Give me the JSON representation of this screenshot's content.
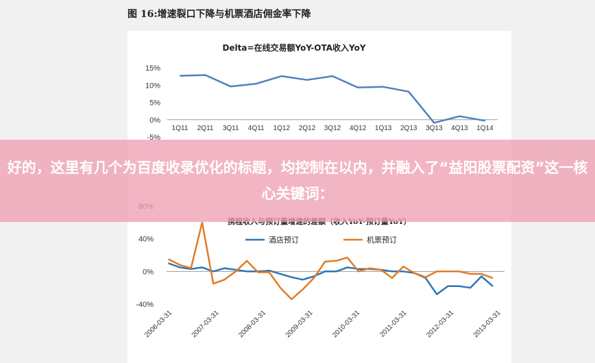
{
  "figure_title": "图 16:增速裂口下降与机票酒店佣金率下降",
  "overlay_text": "好的，这里有几个为百度收录优化的标题，均控制在以内，并融入了“益阳股票配资”这一核心关键词：",
  "chart_data": [
    {
      "type": "line",
      "title": "Delta=在线交易额YoY-OTA收入YoY",
      "categories": [
        "1Q11",
        "2Q11",
        "3Q11",
        "4Q11",
        "1Q12",
        "2Q12",
        "3Q12",
        "4Q12",
        "1Q13",
        "2Q13",
        "3Q13",
        "4Q13",
        "1Q14"
      ],
      "y_tick_labels": [
        "15%",
        "10%",
        "5%",
        "0%",
        "-5%"
      ],
      "ylim": [
        -5,
        15
      ],
      "series": [
        {
          "values": [
            12.7,
            12.9,
            9.6,
            10.4,
            12.6,
            11.5,
            12.6,
            9.3,
            9.5,
            8.1,
            -0.9,
            1.0,
            -0.3
          ],
          "color": "#4f81bd"
        }
      ]
    },
    {
      "type": "line",
      "title": "携程收入与预订量增速的差额（收入YoY-预订量YoY）",
      "x_tick_labels": [
        "2006-03-31",
        "2007-03-31",
        "2008-03-31",
        "2009-03-31",
        "2010-03-31",
        "2011-03-31",
        "2012-03-31",
        "2013-03-31"
      ],
      "y_tick_labels": [
        "80%",
        "40%",
        "0%",
        "-40%"
      ],
      "ylim": [
        -40,
        80
      ],
      "legend_position": "top",
      "series": [
        {
          "name": "酒店预订",
          "color": "#2e75b6",
          "values": [
            10,
            5,
            3,
            5,
            0,
            4,
            2,
            0,
            0,
            1,
            -3,
            -7,
            -10,
            -6,
            0,
            0,
            5,
            3,
            3,
            2,
            0,
            0,
            -2,
            -8,
            -28,
            -18,
            -18,
            -20,
            -6,
            -18
          ]
        },
        {
          "name": "机票预订",
          "color": "#e07b24",
          "values": [
            15,
            8,
            4,
            60,
            -15,
            -10,
            0,
            13,
            -1,
            -1,
            -20,
            -34,
            -22,
            -8,
            12,
            13,
            17,
            0,
            4,
            2,
            -8,
            6,
            -2,
            -7,
            0,
            0,
            0,
            -3,
            -3,
            -8
          ]
        }
      ]
    }
  ]
}
